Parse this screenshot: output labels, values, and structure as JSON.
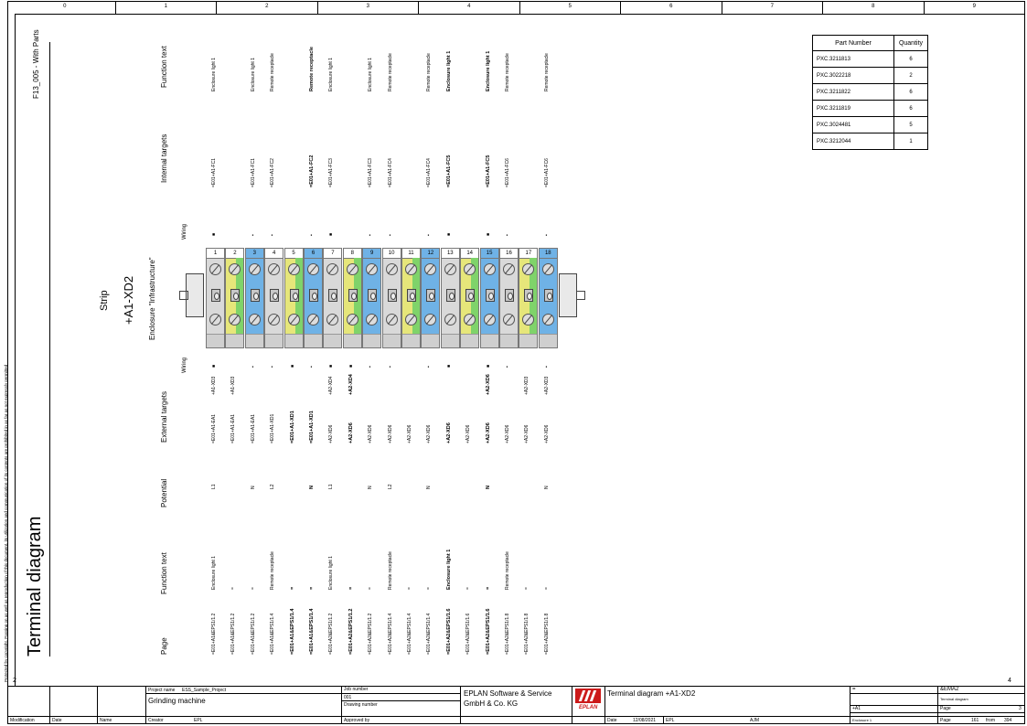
{
  "header": {
    "columns": [
      "0",
      "1",
      "2",
      "3",
      "4",
      "5",
      "6",
      "7",
      "8",
      "9"
    ]
  },
  "title": "Terminal diagram",
  "form_name": "F13_005 - With Parts",
  "copyright": "Protected by copyright. Passing on as well as reproduction of this document, its utilization and communication of its contents are prohibited in as far as not expressly permitted",
  "strip": {
    "label": "Strip",
    "name": "+A1-XD2",
    "enclosure": "Enclosure \"Infrastructure\""
  },
  "row_labels": {
    "function_top": "Function text",
    "internal": "Internal targets",
    "wiring_top": "Wiring",
    "wiring_bottom": "Wiring",
    "external": "External targets",
    "potential": "Potential",
    "function_bottom": "Function text",
    "page": "Page"
  },
  "terminals": [
    {
      "n": "1",
      "color": "#d9d9d9",
      "ft": "Enclosure light 1",
      "it": "=E01+A1-FC1",
      "wt": "■",
      "wb": "■",
      "wbx": "+A1-XD3",
      "et": "=E01+A1-EA1",
      "pot": "L1",
      "fb": "Enclosure light 1",
      "pg": "=E01+A1&EPS1/1.2",
      "bold": false
    },
    {
      "n": "2",
      "color": "#e6e67a",
      "ft": "",
      "it": "",
      "wt": "",
      "wb": "",
      "wbx": "+A1-XD3",
      "et": "=E01+A1-EA1",
      "pot": "",
      "fb": "=",
      "pg": "=E01+A1&EPS1/1.2",
      "bold": false
    },
    {
      "n": "3",
      "color": "#6fb2e6",
      "ft": "Enclosure light 1",
      "it": "=E01+A1-FC1",
      "wt": "▪",
      "wb": "▪",
      "wbx": "",
      "et": "=E01+A1-EA1",
      "pot": "N",
      "fb": "=",
      "pg": "=E01+A1&EPS1/1.2",
      "bold": false
    },
    {
      "n": "4",
      "color": "#d9d9d9",
      "ft": "Remote receptacle",
      "it": "=E01+A1-FC2",
      "wt": "▪",
      "wb": "▪",
      "wbx": "",
      "et": "=E01+A1-XD1",
      "pot": "L2",
      "fb": "Remote receptacle",
      "pg": "=E01+A1&EPS1/1.4",
      "bold": false
    },
    {
      "n": "5",
      "color": "#e6e67a",
      "ft": "",
      "it": "",
      "wt": "",
      "wb": "■",
      "wbx": "",
      "et": "=E01+A1-XD1",
      "pot": "",
      "fb": "=",
      "pg": "=E01+A1&EPS1/1.4",
      "bold": true
    },
    {
      "n": "6",
      "color": "#6fb2e6",
      "ft": "Remote receptacle",
      "it": "=E01+A1-FC2",
      "wt": "▪",
      "wb": "▪",
      "wbx": "",
      "et": "=E01+A1-XD1",
      "pot": "N",
      "fb": "=",
      "pg": "=E01+A1&EPS1/1.4",
      "bold": true
    },
    {
      "n": "7",
      "color": "#d9d9d9",
      "ft": "Enclosure light 1",
      "it": "=E01+A1-FC3",
      "wt": "■",
      "wb": "■",
      "wbx": "+A2-XD4",
      "et": "+A2-XD6",
      "pot": "L1",
      "fb": "Enclosure light 1",
      "pg": "=E01+A2&EPS1/1.2",
      "bold": false
    },
    {
      "n": "8",
      "color": "#e6e67a",
      "ft": "",
      "it": "",
      "wt": "",
      "wb": "■",
      "wbx": "+A2-XD4",
      "et": "+A2-XD6",
      "pot": "",
      "fb": "=",
      "pg": "=E01+A2&EPS1/1.2",
      "bold": true
    },
    {
      "n": "9",
      "color": "#6fb2e6",
      "ft": "Enclosure light 1",
      "it": "=E01+A1-FC3",
      "wt": "▪",
      "wb": "▪",
      "wbx": "",
      "et": "+A2-XD6",
      "pot": "N",
      "fb": "=",
      "pg": "=E01+A2&EPS1/1.2",
      "bold": false
    },
    {
      "n": "10",
      "color": "#d9d9d9",
      "ft": "Remote receptacle",
      "it": "=E01+A1-FC4",
      "wt": "▪",
      "wb": "▪",
      "wbx": "",
      "et": "+A2-XD6",
      "pot": "L2",
      "fb": "Remote receptacle",
      "pg": "=E01+A2&EPS1/1.4",
      "bold": false
    },
    {
      "n": "11",
      "color": "#e6e67a",
      "ft": "",
      "it": "",
      "wt": "",
      "wb": "",
      "wbx": "",
      "et": "+A2-XD6",
      "pot": "",
      "fb": "=",
      "pg": "=E01+A2&EPS1/1.4",
      "bold": false
    },
    {
      "n": "12",
      "color": "#6fb2e6",
      "ft": "Remote receptacle",
      "it": "=E01+A1-FC4",
      "wt": "▪",
      "wb": "▪",
      "wbx": "",
      "et": "+A2-XD6",
      "pot": "N",
      "fb": "=",
      "pg": "=E01+A2&EPS1/1.4",
      "bold": false
    },
    {
      "n": "13",
      "color": "#d9d9d9",
      "ft": "Enclosure light 1",
      "it": "=E01+A1-FC5",
      "wt": "■",
      "wb": "■",
      "wbx": "",
      "et": "+A2-XD6",
      "pot": "",
      "fb": "Enclosure light 1",
      "pg": "=E01+A2&EPS1/1.6",
      "bold": true
    },
    {
      "n": "14",
      "color": "#e6e67a",
      "ft": "",
      "it": "",
      "wt": "",
      "wb": "",
      "wbx": "",
      "et": "+A2-XD6",
      "pot": "",
      "fb": "=",
      "pg": "=E01+A2&EPS1/1.6",
      "bold": false
    },
    {
      "n": "15",
      "color": "#6fb2e6",
      "ft": "Enclosure light 1",
      "it": "=E01+A1-FC5",
      "wt": "■",
      "wb": "■",
      "wbx": "+A2-XD6",
      "et": "+A2-XD6",
      "pot": "N",
      "fb": "=",
      "pg": "=E01+A2&EPS1/1.6",
      "bold": true
    },
    {
      "n": "16",
      "color": "#d9d9d9",
      "ft": "Remote receptacle",
      "it": "=E01+A1-FC6",
      "wt": "▪",
      "wb": "▪",
      "wbx": "",
      "et": "+A2-XD6",
      "pot": "",
      "fb": "Remote receptacle",
      "pg": "=E01+A2&EPS1/1.8",
      "bold": false
    },
    {
      "n": "17",
      "color": "#e6e67a",
      "ft": "",
      "it": "",
      "wt": "",
      "wb": "",
      "wbx": "+A2-XD3",
      "et": "+A2-XD6",
      "pot": "",
      "fb": "=",
      "pg": "=E01+A2&EPS1/1.8",
      "bold": false
    },
    {
      "n": "18",
      "color": "#6fb2e6",
      "ft": "Remote receptacle",
      "it": "=E01+A1-FC6",
      "wt": "▪",
      "wb": "▪",
      "wbx": "+A2-XD3",
      "et": "+A2-XD6",
      "pot": "N",
      "fb": "=",
      "pg": "=E01+A2&EPS1/1.8",
      "bold": false
    }
  ],
  "parts": {
    "headers": [
      "Part Number",
      "Quantity"
    ],
    "rows": [
      [
        "PXC.3211813",
        "6"
      ],
      [
        "PXC.3022218",
        "2"
      ],
      [
        "PXC.3211822",
        "6"
      ],
      [
        "PXC.3211819",
        "6"
      ],
      [
        "PXC.3024481",
        "5"
      ],
      [
        "PXC.3212044",
        "1"
      ]
    ]
  },
  "titleblock": {
    "prev_page": "2",
    "next_page": "4",
    "project_name_label": "Project name",
    "project_name": "ESS_Sample_Project",
    "project_desc": "Grinding machine",
    "job_number_label": "Job number",
    "job_number": "001",
    "drawing_number_label": "Drawing number",
    "approved_by_label": "Approved by",
    "company_line1": "EPLAN Software & Service",
    "company_line2": "GmbH & Co. KG",
    "logo_text": "EPLAN",
    "page_title": "Terminal diagram +A1-XD2",
    "eq": "=",
    "doc_code": "&EMA2",
    "doc_sub": "Terminal diagram",
    "loc": "+A1",
    "loc_sub": "Enclosure 1",
    "page_label": "Page",
    "page_num": "3",
    "page_label2": "Page",
    "page_total_num": "161",
    "page_from": "from",
    "page_total": "394",
    "modification": "Modification",
    "date_label": "Date",
    "name_label": "Name",
    "creator_label": "Creator",
    "creator": "EPL",
    "date_label2": "Date",
    "date_value": "12/08/2021",
    "date_user": "EPL",
    "ajm": "AJM"
  }
}
